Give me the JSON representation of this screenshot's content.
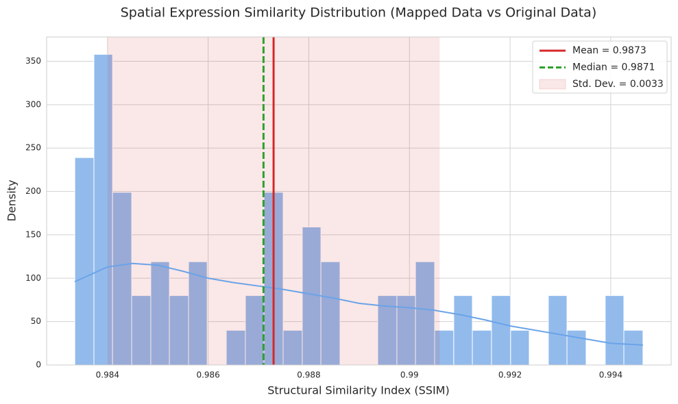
{
  "chart_data": {
    "type": "histogram",
    "title": "Spatial Expression Similarity Distribution (Mapped Data vs Original Data)",
    "xlabel": "Structural Similarity Index (SSIM)",
    "ylabel": "Density",
    "bins": [
      0.98335,
      0.98373,
      0.9841,
      0.98448,
      0.98486,
      0.98523,
      0.98561,
      0.98598,
      0.98636,
      0.98674,
      0.98711,
      0.98749,
      0.98787,
      0.98824,
      0.98862,
      0.989,
      0.98937,
      0.98975,
      0.99012,
      0.9905,
      0.99088,
      0.99125,
      0.99163,
      0.99201,
      0.99238,
      0.99276,
      0.99313,
      0.99351,
      0.99389,
      0.99426,
      0.99464
    ],
    "values": [
      239,
      358,
      199,
      80,
      119,
      80,
      119,
      0,
      40,
      80,
      199,
      40,
      159,
      119,
      0,
      0,
      80,
      80,
      119,
      40,
      80,
      40,
      80,
      40,
      0,
      80,
      40,
      0,
      80,
      40
    ],
    "color": "#92bbec",
    "kde": {
      "color": "#6aa3e8",
      "x": [
        0.98335,
        0.984,
        0.9845,
        0.985,
        0.9855,
        0.986,
        0.9865,
        0.987,
        0.9875,
        0.988,
        0.9885,
        0.989,
        0.9895,
        0.99,
        0.9905,
        0.991,
        0.9915,
        0.992,
        0.9925,
        0.993,
        0.9935,
        0.994,
        0.99464
      ],
      "y": [
        96,
        113,
        117,
        115,
        108,
        100,
        95,
        91,
        87,
        82,
        77,
        71,
        68,
        66,
        63,
        58,
        52,
        45,
        40,
        35,
        30,
        25,
        23
      ]
    },
    "mean": {
      "name": "Mean = 0.9873",
      "value": 0.9873,
      "color": "#d62728"
    },
    "median": {
      "name": "Median = 0.9871",
      "value": 0.9871,
      "color": "#2ca02c"
    },
    "std": {
      "name": "Std. Dev. = 0.0033",
      "value": 0.0033,
      "color": "#d62728"
    },
    "xlim": [
      0.98279,
      0.9952
    ],
    "ylim": [
      0,
      378
    ],
    "xticks": [
      0.984,
      0.986,
      0.988,
      0.99,
      0.992,
      0.994
    ],
    "yticks": [
      0,
      50,
      100,
      150,
      200,
      250,
      300,
      350
    ],
    "grid": true,
    "legend": "upper right"
  }
}
